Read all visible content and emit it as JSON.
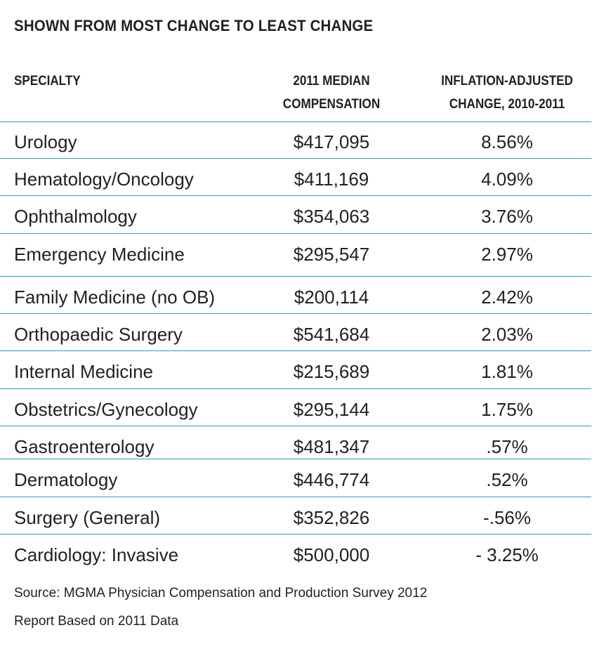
{
  "title": "SHOWN FROM MOST CHANGE TO LEAST CHANGE",
  "headers": {
    "specialty": "SPECIALTY",
    "compensation_line1": "2011 MEDIAN",
    "compensation_line2": "COMPENSATION",
    "change_line1": "INFLATION-ADJUSTED",
    "change_line2": "CHANGE, 2010-2011"
  },
  "rows": [
    {
      "specialty": "Urology",
      "compensation": "$417,095",
      "change": "8.56%"
    },
    {
      "specialty": "Hematology/Oncology",
      "compensation": "$411,169",
      "change": "4.09%"
    },
    {
      "specialty": "Ophthalmology",
      "compensation": "$354,063",
      "change": "3.76%"
    },
    {
      "specialty": "Emergency Medicine",
      "compensation": "$295,547",
      "change": "2.97%"
    },
    {
      "specialty": "Family Medicine (no OB)",
      "compensation": "$200,114",
      "change": "2.42%"
    },
    {
      "specialty": "Orthopaedic Surgery",
      "compensation": "$541,684",
      "change": "2.03%"
    },
    {
      "specialty": "Internal Medicine",
      "compensation": "$215,689",
      "change": "1.81%"
    },
    {
      "specialty": "Obstetrics/Gynecology",
      "compensation": "$295,144",
      "change": "1.75%"
    },
    {
      "specialty": "Gastroenterology",
      "compensation": "$481,347",
      "change": ".57%"
    },
    {
      "specialty": "Dermatology",
      "compensation": "$446,774",
      "change": ".52%"
    },
    {
      "specialty": "Surgery (General)",
      "compensation": "$352,826",
      "change": "-.56%"
    },
    {
      "specialty": "Cardiology: Invasive",
      "compensation": "$500,000",
      "change": "- 3.25%"
    }
  ],
  "footnote": {
    "source": "Source: MGMA Physician Compensation and Production Survey 2012",
    "report": "Report Based on 2011 Data"
  },
  "colors": {
    "text": "#231f20",
    "rule": "#2f9fb8"
  }
}
